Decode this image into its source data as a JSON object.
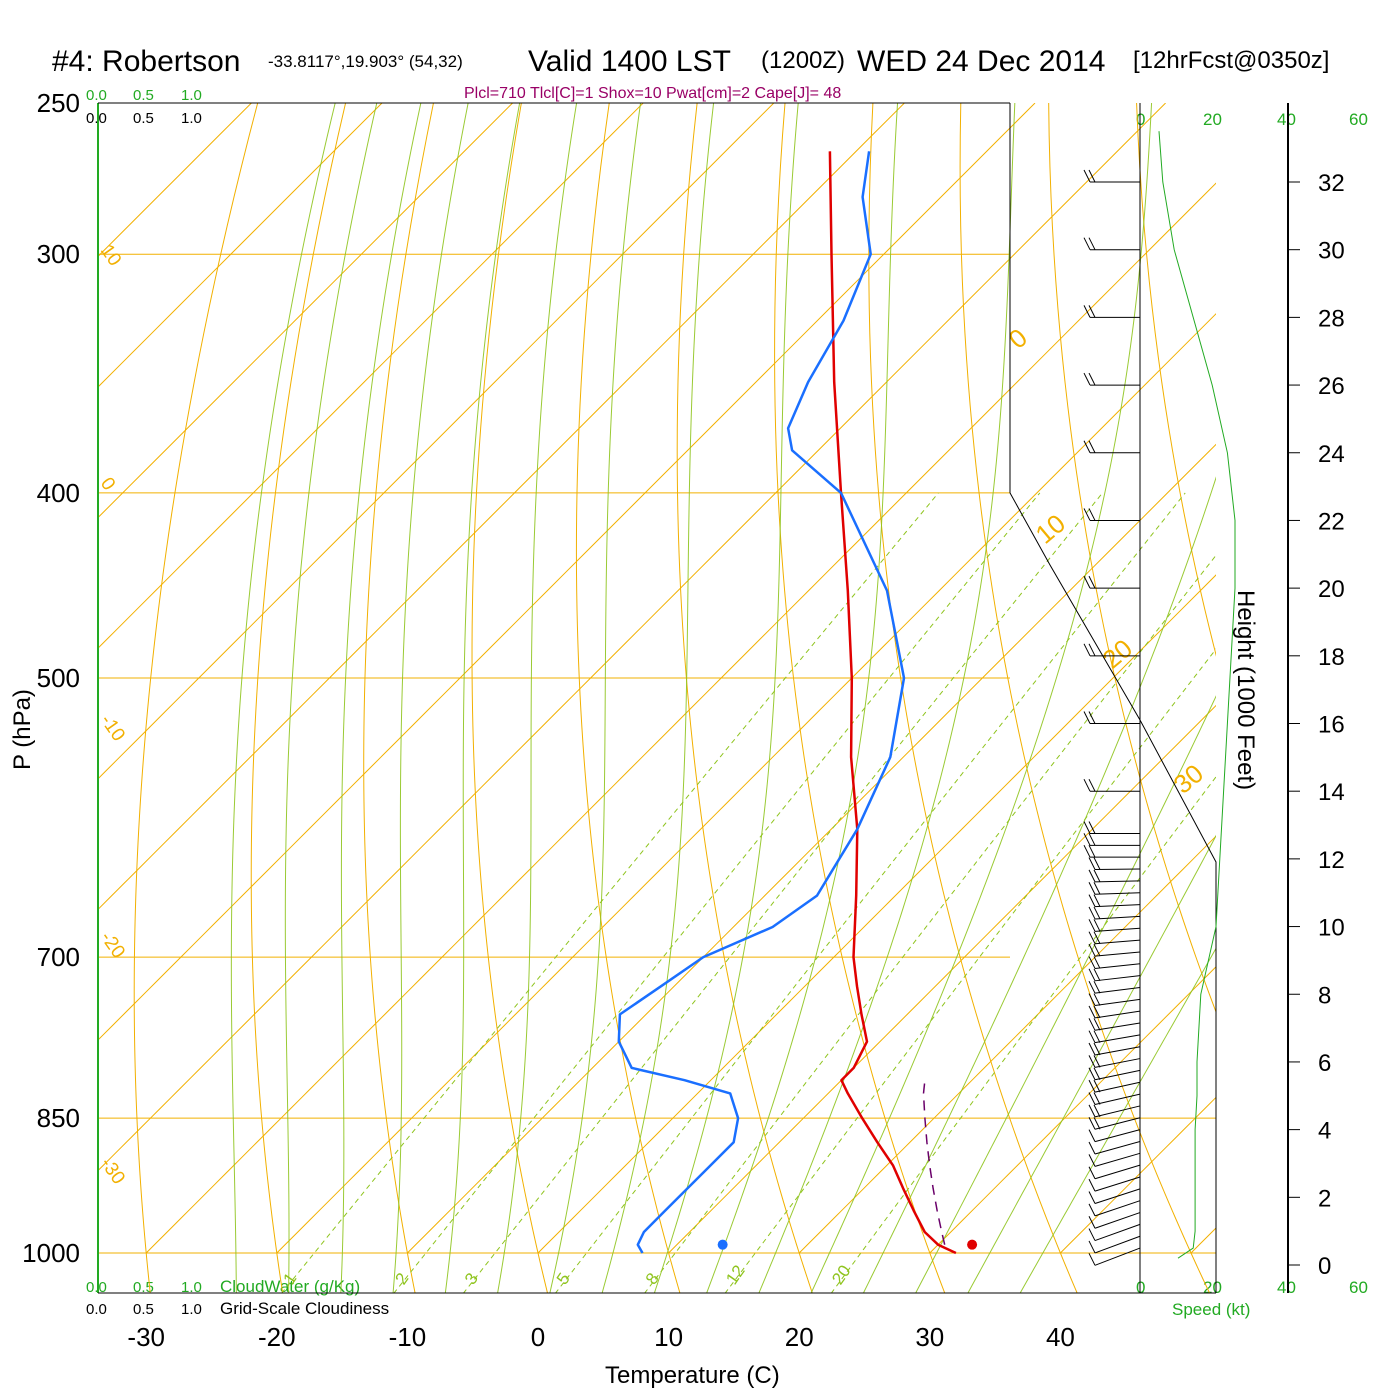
{
  "header": {
    "station": "#4: Robertson",
    "coords": "-33.8117°,19.903° (54,32)",
    "valid": "Valid 1400 LST",
    "utc": "(1200Z)",
    "date": "WED 24 Dec 2014",
    "forecast": "[12hrFcst@0350z]"
  },
  "indices_text": "Plcl=710 Tlcl[C]=1 Shox=10 Pwat[cm]=2 Cape[J]= 48",
  "colors": {
    "isotherm": "#f2b000",
    "dry_adiabat": "#9acd32",
    "moist_adiabat": "#8fc41e",
    "mixing_ratio": "#8fc41e",
    "temperature": "#e00000",
    "dewpoint": "#1a6fff",
    "parcel": "#6a006a",
    "green": "#22aa22",
    "title": "#000000",
    "indices": "#990066"
  },
  "labels": {
    "pressure_axis": "P (hPa)",
    "temperature_axis": "Temperature (C)",
    "height_axis": "Height (1000 Feet)",
    "speed_axis": "Speed (kt)",
    "cloud_water": "CloudWater (g/Kg)",
    "cloudiness": "Grid-Scale Cloudiness"
  },
  "cloud_scale_top_green": [
    "0.0",
    "0.5",
    "1.0"
  ],
  "cloud_scale_top_black": [
    "0.0",
    "0.5",
    "1.0"
  ],
  "cloud_scale_bottom_green": [
    "0.0",
    "0.5",
    "1.0"
  ],
  "cloud_scale_bottom_black": [
    "0.0",
    "0.5",
    "1.0"
  ],
  "speed_ticks": [
    "0",
    "20",
    "40",
    "60"
  ],
  "chart_data": {
    "type": "line",
    "pressure_ticks": [
      250,
      300,
      400,
      500,
      700,
      850,
      1000
    ],
    "temperature_ticks": [
      -30,
      -20,
      -10,
      0,
      10,
      20,
      30,
      40
    ],
    "height_ticks_kft": [
      0,
      2,
      4,
      6,
      8,
      10,
      12,
      14,
      16,
      18,
      20,
      22,
      24,
      26,
      28,
      30,
      32
    ],
    "isotherm_labels": [
      "10",
      "0",
      "-10",
      "-20",
      "-30",
      "0",
      "10",
      "20",
      "30"
    ],
    "mixing_ratio_labels": [
      "1",
      "2",
      "3",
      "5",
      "8",
      "12",
      "20"
    ],
    "surface_temperature_c": 32.6,
    "surface_dewpoint_c": 13.5,
    "series": [
      {
        "name": "temperature",
        "p": [
          1000,
          990,
          975,
          950,
          925,
          900,
          875,
          850,
          825,
          812,
          800,
          775,
          750,
          725,
          700,
          650,
          600,
          550,
          500,
          450,
          400,
          350,
          300,
          265
        ],
        "t": [
          32,
          30,
          28,
          25.5,
          23,
          20.5,
          17.5,
          14.5,
          11.5,
          10,
          10,
          9,
          6.5,
          4,
          1.5,
          -3,
          -8,
          -14,
          -20,
          -27,
          -35,
          -44,
          -54,
          -62
        ]
      },
      {
        "name": "dewpoint",
        "p": [
          1000,
          990,
          975,
          950,
          925,
          900,
          875,
          850,
          825,
          812,
          800,
          775,
          750,
          725,
          700,
          675,
          650,
          600,
          550,
          500,
          450,
          400,
          380,
          370,
          350,
          325,
          300,
          280,
          265
        ],
        "t": [
          8,
          7,
          6.5,
          6.5,
          6.5,
          6.5,
          6.5,
          5,
          2.5,
          -2,
          -7,
          -10,
          -12,
          -11,
          -10,
          -7,
          -6,
          -8,
          -11,
          -16,
          -24,
          -35,
          -42,
          -44,
          -46,
          -48,
          -51,
          -56,
          -59
        ]
      },
      {
        "name": "parcel",
        "p": [
          990,
          975,
          950,
          925,
          900,
          875,
          850,
          825,
          812
        ],
        "t": [
          30.5,
          29.3,
          27.3,
          25.3,
          23.3,
          21.3,
          19.3,
          17.3,
          16.4
        ]
      }
    ],
    "wind_speed_profile": {
      "height_kft": [
        0.2,
        0.5,
        1,
        2,
        3,
        4,
        5,
        6,
        8,
        10,
        12,
        14,
        16,
        18,
        20,
        22,
        24,
        26,
        28,
        30,
        32,
        33.5
      ],
      "speed_kt": [
        10,
        14,
        14.5,
        14.5,
        14.5,
        14.5,
        15,
        15,
        16,
        20,
        21,
        22,
        23,
        24,
        25,
        25,
        23,
        19,
        14,
        9,
        6,
        5
      ]
    },
    "grid": true
  }
}
